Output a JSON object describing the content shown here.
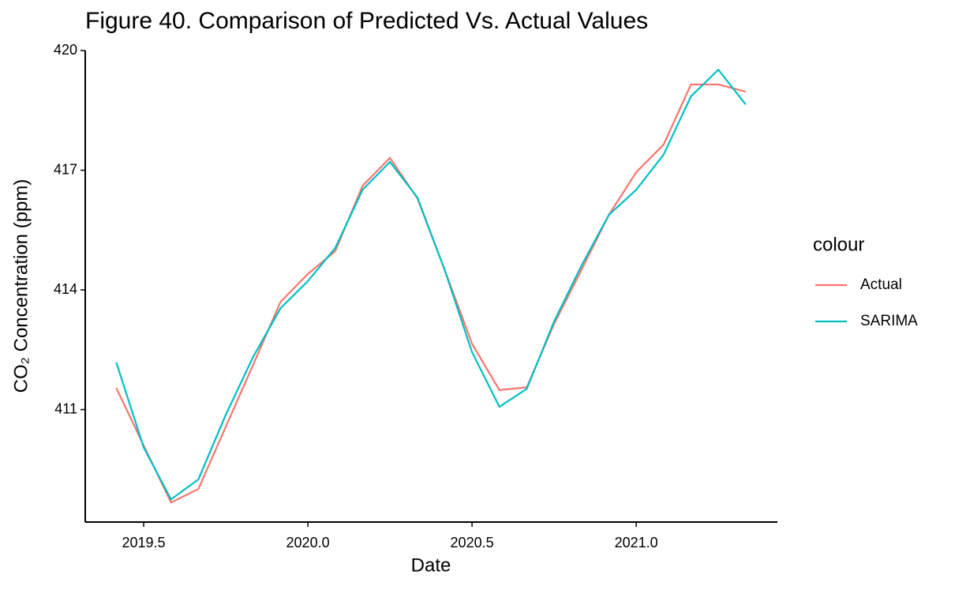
{
  "chart_data": {
    "type": "line",
    "title": "Figure 40. Comparison of Predicted Vs. Actual Values",
    "x_label": "Date",
    "y_label": "CO₂ Concentration (ppm)",
    "legend_title": "colour",
    "legend_position": "right",
    "x": [
      2019.4167,
      2019.5,
      2019.5833,
      2019.6667,
      2019.75,
      2019.8333,
      2019.9167,
      2020.0,
      2020.0833,
      2020.1667,
      2020.25,
      2020.3333,
      2020.4167,
      2020.5,
      2020.5833,
      2020.6667,
      2020.75,
      2020.8333,
      2020.9167,
      2021.0,
      2021.0833,
      2021.1667,
      2021.25,
      2021.3333
    ],
    "series": [
      {
        "name": "Actual",
        "color": "#F8766D",
        "values": [
          411.54,
          410.1,
          408.67,
          409.01,
          410.57,
          412.12,
          413.7,
          414.4,
          414.97,
          416.61,
          417.31,
          416.3,
          414.5,
          412.65,
          411.49,
          411.56,
          413.15,
          414.5,
          415.88,
          416.95,
          417.64,
          419.15,
          419.15,
          418.97
        ]
      },
      {
        "name": "SARIMA",
        "color": "#00BFC4",
        "values": [
          412.18,
          410.05,
          408.75,
          409.25,
          410.87,
          412.32,
          413.54,
          414.22,
          415.05,
          416.51,
          417.21,
          416.32,
          414.5,
          412.44,
          411.07,
          411.52,
          413.21,
          414.61,
          415.88,
          416.51,
          417.39,
          418.85,
          419.52,
          418.65
        ]
      }
    ],
    "xlim": [
      2019.322,
      2021.43
    ],
    "xticks": [
      2019.5,
      {
        "value": 2020,
        "label": "2020.0"
      },
      2020.5,
      {
        "value": 2021,
        "label": "2021.0"
      }
    ],
    "ylim": [
      408.18,
      420
    ],
    "yticks": [
      411,
      414,
      417,
      420
    ],
    "grid": false
  }
}
